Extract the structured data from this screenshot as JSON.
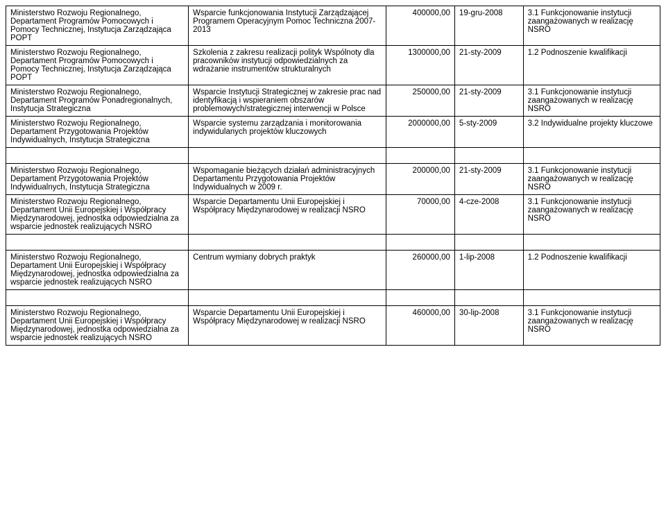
{
  "rows": [
    {
      "c0": "Ministerstwo Rozwoju Regionalnego, Departament Programów Pomocowych i Pomocy Technicznej, Instytucja Zarządzająca POPT",
      "c1": "Wsparcie funkcjonowania Instytucji Zarządzającej Programem Operacyjnym Pomoc Techniczna 2007-2013",
      "c2": "400000,00",
      "c3": "19-gru-2008",
      "c4": "3.1 Funkcjonowanie instytucji zaangażowanych w realizację NSRO"
    },
    {
      "c0": "Ministerstwo Rozwoju Regionalnego, Departament Programów Pomocowych i Pomocy Technicznej, Instytucja Zarządzająca POPT",
      "c1": "Szkolenia z zakresu realizacji polityk Wspólnoty dla pracowników instytucji odpowiedzialnych za wdrażanie instrumentów strukturalnych",
      "c2": "1300000,00",
      "c3": "21-sty-2009",
      "c4": "1.2 Podnoszenie kwalifikacji"
    },
    {
      "c0": "Ministerstwo Rozwoju Regionalnego, Departament Programów Ponadregionalnych, Instytucja Strategiczna",
      "c1": "Wsparcie Instytucji Strategicznej w zakresie prac nad identyfikacją i wspieraniem obszarów problemowych/strategicznej interwencji w Polsce",
      "c2": "250000,00",
      "c3": "21-sty-2009",
      "c4": "3.1 Funkcjonowanie instytucji zaangażowanych w realizację NSRO"
    },
    {
      "c0": "Ministerstwo Rozwoju Regionalnego, Departament Przygotowania Projektów Indywidualnych, Instytucja Strategiczna",
      "c1": "Wsparcie systemu zarządzania i monitorowania indywidulanych projektów kluczowych",
      "c2": "2000000,00",
      "c3": "5-sty-2009",
      "c4": "3.2 Indywidualne projekty kluczowe"
    },
    {
      "spacer": true
    },
    {
      "c0": "Ministerstwo Rozwoju Regionalnego, Departament Przygotowania Projektów Indywidualnych, Instytucja Strategiczna",
      "c1": "Wspomaganie bieżących działań administracyjnych Departamentu Przygotowania Projektów Indywidualnych w 2009 r.",
      "c2": "200000,00",
      "c3": "21-sty-2009",
      "c4": "3.1 Funkcjonowanie instytucji zaangażowanych w realizację NSRO"
    },
    {
      "c0": "Ministerstwo Rozwoju Regionalnego, Departament Unii Europejskiej i Współpracy Międzynarodowej, jednostka odpowiedzialna za wsparcie jednostek realizujących NSRO",
      "c1": "Wsparcie Departamentu Unii Europejskiej i Współpracy Międzynarodowej w realizacji NSRO",
      "c2": "70000,00",
      "c3": "4-cze-2008",
      "c4": "3.1 Funkcjonowanie instytucji zaangażowanych w realizację NSRO"
    },
    {
      "spacer": true
    },
    {
      "c0": "Ministerstwo Rozwoju Regionalnego, Departament Unii Europejskiej i Współpracy Międzynarodowej, jednostka odpowiedzialna za wsparcie jednostek realizujących NSRO",
      "c1": "Centrum wymiany dobrych praktyk",
      "c2": "260000,00",
      "c3": "1-lip-2008",
      "c4": "1.2 Podnoszenie kwalifikacji"
    },
    {
      "spacer": true
    },
    {
      "c0": "Ministerstwo Rozwoju Regionalnego, Departament Unii Europejskiej i Współpracy Międzynarodowej, jednostka odpowiedzialna za wsparcie jednostek realizujących NSRO",
      "c1": "Wsparcie Departamentu Unii Europejskiej i Współpracy Międzynarodowej w realizacji NSRO",
      "c2": "460000,00",
      "c3": "30-lip-2008",
      "c4": "3.1 Funkcjonowanie instytucji zaangażowanych w realizację NSRO"
    }
  ]
}
